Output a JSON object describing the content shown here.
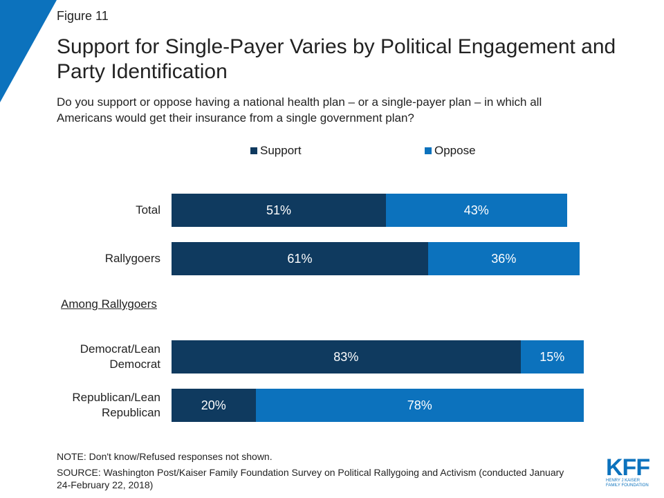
{
  "figure_label": "Figure 11",
  "logo": {
    "main": "KFF",
    "line1": "HENRY J KAISER",
    "line2": "FAMILY FOUNDATION"
  },
  "colors": {
    "support": "#0f3a5f",
    "oppose": "#0c72bd",
    "accent": "#0c72bd"
  },
  "chart_data": {
    "type": "bar",
    "orientation": "horizontal",
    "stacked": true,
    "title": "Support for Single-Payer Varies by Political Engagement and Party Identification",
    "subtitle": "Do you support or oppose having a national health plan – or a single-payer plan – in which all Americans would get their insurance from a single government plan?",
    "legend": [
      "Support",
      "Oppose"
    ],
    "legend_position": "top",
    "categories": [
      "Total",
      "Rallygoers",
      "Democrat/Lean Democrat",
      "Republican/Lean Republican"
    ],
    "category_label_lines": [
      [
        "Total"
      ],
      [
        "Rallygoers"
      ],
      [
        "Democrat/Lean",
        "Democrat"
      ],
      [
        "Republican/Lean",
        "Republican"
      ]
    ],
    "group_heading": "Among Rallygoers",
    "series": [
      {
        "name": "Support",
        "values": [
          51,
          61,
          83,
          20
        ],
        "labels": [
          "51%",
          "61%",
          "83%",
          "20%"
        ]
      },
      {
        "name": "Oppose",
        "values": [
          43,
          36,
          15,
          78
        ],
        "labels": [
          "43%",
          "36%",
          "15%",
          "78%"
        ]
      }
    ],
    "xlim": [
      0,
      100
    ],
    "grid": false
  },
  "note": "NOTE: Don't know/Refused responses not shown.",
  "source": "SOURCE: Washington Post/Kaiser Family Foundation Survey on Political Rallygoing and Activism (conducted January 24-February 22, 2018)"
}
